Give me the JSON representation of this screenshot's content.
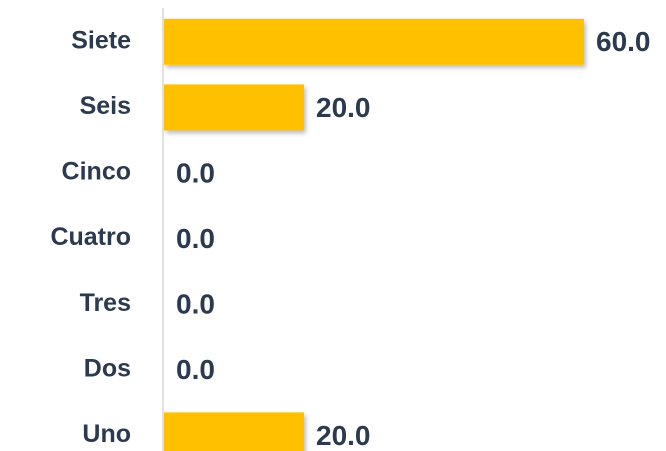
{
  "chart_data": {
    "type": "barh",
    "categories": [
      "Siete",
      "Seis",
      "Cinco",
      "Cuatro",
      "Tres",
      "Dos",
      "Uno"
    ],
    "values": [
      60,
      20,
      0,
      0,
      0,
      0,
      20
    ],
    "value_labels": [
      "60.0",
      "20.0",
      "0.0",
      "0.0",
      "0.0",
      "0.0",
      "20.0"
    ],
    "color": "#ffc000",
    "xlim": [
      0,
      60
    ]
  }
}
